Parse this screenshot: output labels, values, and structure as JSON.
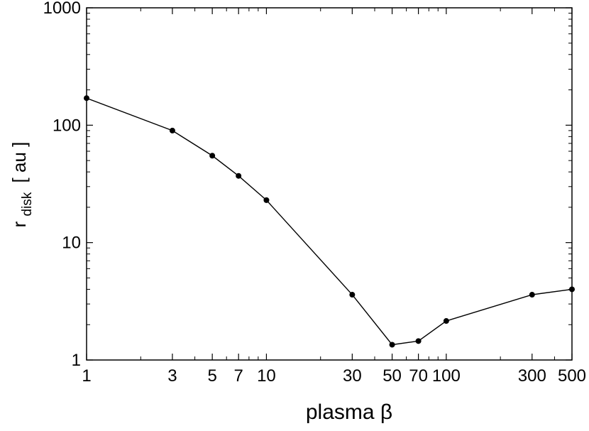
{
  "chart_data": {
    "type": "line",
    "xlabel": "plasma β",
    "ylabel_main": "r",
    "ylabel_sub": "disk",
    "ylabel_unit": "[ au ]",
    "xscale": "log",
    "yscale": "log",
    "xlim": [
      1,
      500
    ],
    "ylim": [
      1,
      1000
    ],
    "xticks": [
      1,
      3,
      5,
      7,
      10,
      30,
      50,
      70,
      100,
      300,
      500
    ],
    "xtick_labels": [
      "1",
      "3",
      "5",
      "7",
      "10",
      "30",
      "50",
      "70",
      "100",
      "300",
      "500"
    ],
    "yticks": [
      1,
      10,
      100,
      1000
    ],
    "ytick_labels": [
      "1",
      "10",
      "100",
      "1000"
    ],
    "grid": false,
    "line_color": "#000000",
    "series": [
      {
        "x": [
          1,
          3,
          5,
          7,
          10,
          30,
          50,
          70,
          100,
          300,
          500
        ],
        "y": [
          170,
          90,
          55,
          37,
          23,
          3.6,
          1.35,
          1.45,
          2.15,
          3.6,
          4.0
        ]
      }
    ]
  }
}
